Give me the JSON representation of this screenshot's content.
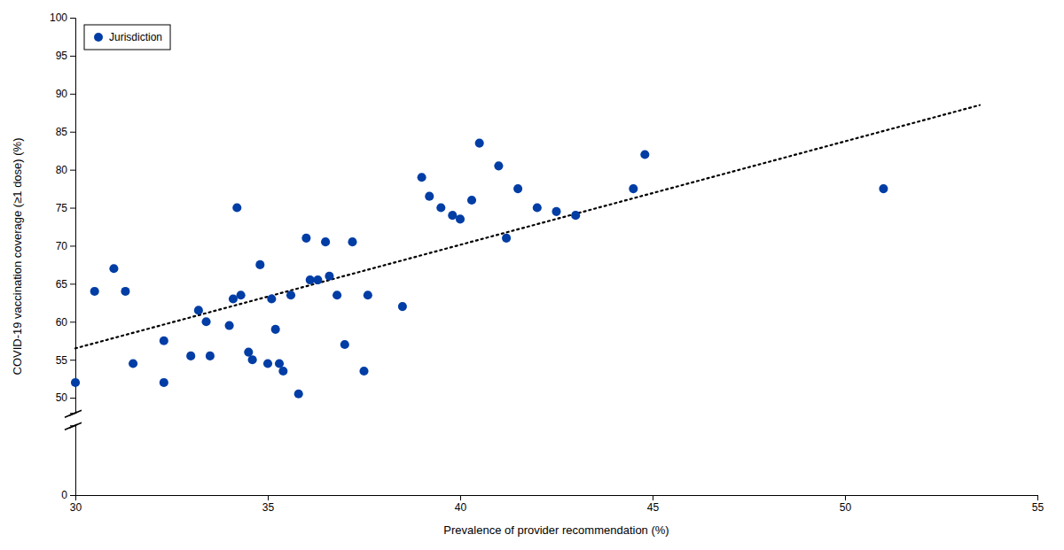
{
  "chart_data": [
    {
      "type": "scatter",
      "ylabel": "COVID-19 vaccination coverage (≥1 dose) (%)",
      "xlim": [
        30,
        55
      ],
      "ylim": [
        48,
        100
      ],
      "yticks": [
        50,
        55,
        60,
        65,
        70,
        75,
        80,
        85,
        90,
        95,
        100
      ],
      "tick_labels": "y",
      "legend": "upper left",
      "series": [
        {
          "name": "Jurisdiction",
          "type": "scatter",
          "color": "#003DA5",
          "marker": "circle",
          "x": [
            30.0,
            30.5,
            31.0,
            31.3,
            31.5,
            32.3,
            32.3,
            33.0,
            33.2,
            33.4,
            33.5,
            34.0,
            34.1,
            34.2,
            34.3,
            34.5,
            34.6,
            34.8,
            35.0,
            35.1,
            35.2,
            35.3,
            35.4,
            35.6,
            35.8,
            36.0,
            36.1,
            36.3,
            36.5,
            36.6,
            36.8,
            37.0,
            37.2,
            37.5,
            37.6,
            38.5,
            39.0,
            39.2,
            39.5,
            39.8,
            40.0,
            40.3,
            40.5,
            41.0,
            41.2,
            41.5,
            42.0,
            42.5,
            43.0,
            44.5,
            44.8,
            51.0
          ],
          "values": [
            52.0,
            64.0,
            67.0,
            64.0,
            54.5,
            57.5,
            52.0,
            55.5,
            61.5,
            60.0,
            55.5,
            59.5,
            63.0,
            75.0,
            63.5,
            56.0,
            55.0,
            67.5,
            54.5,
            63.0,
            59.0,
            54.5,
            53.5,
            63.5,
            50.5,
            71.0,
            65.5,
            65.5,
            70.5,
            66.0,
            63.5,
            57.0,
            70.5,
            53.5,
            63.5,
            62.0,
            79.0,
            76.5,
            75.0,
            74.0,
            73.5,
            76.0,
            83.5,
            80.5,
            71.0,
            77.5,
            75.0,
            74.5,
            74.0,
            77.5,
            82.0,
            77.5
          ]
        },
        {
          "type": "line",
          "color": "#000000",
          "line_style": "dotted",
          "x": [
            30.0,
            53.5
          ],
          "values": [
            56.5,
            88.5
          ]
        }
      ]
    },
    {
      "type": "scatter",
      "xlabel": "Prevalence of provider recommendation (%)",
      "xlim": [
        30,
        55
      ],
      "xticks": [
        30,
        35,
        40,
        45,
        50,
        55
      ],
      "ylim": [
        0,
        8
      ],
      "yticks": [
        0
      ]
    }
  ]
}
